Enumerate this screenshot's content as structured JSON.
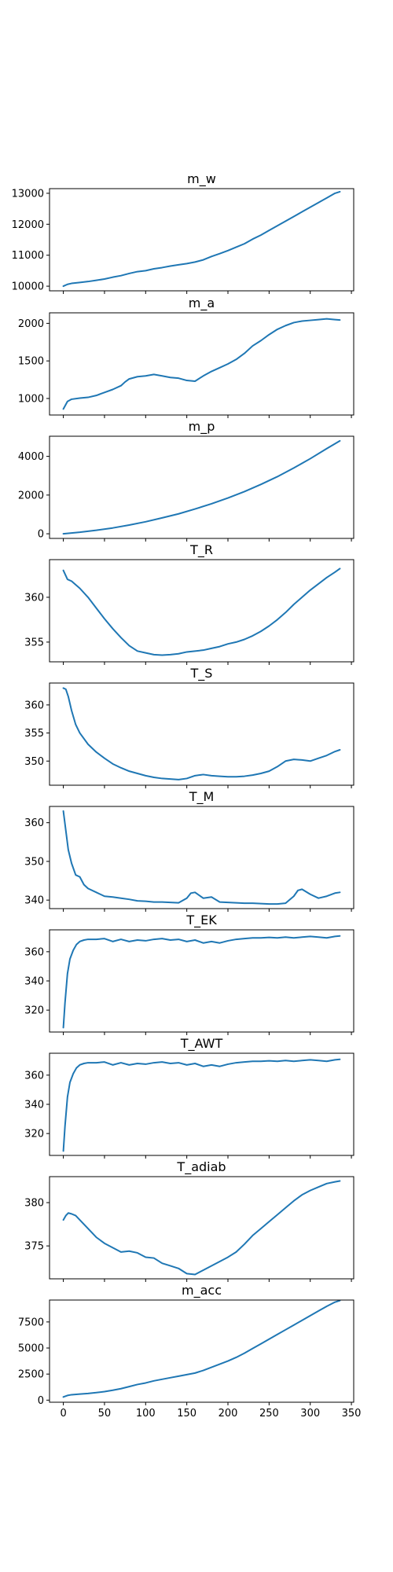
{
  "line_color": "#1f77b4",
  "x_ticks": [
    0,
    50,
    100,
    150,
    200,
    250,
    300,
    350
  ],
  "chart_data": [
    {
      "type": "line",
      "title": "m_w",
      "xlim": [
        -16.8,
        352.8
      ],
      "ylim": [
        9850,
        13150
      ],
      "yticks": [
        10000,
        11000,
        12000,
        13000
      ],
      "x": [
        0,
        5,
        10,
        20,
        30,
        40,
        50,
        60,
        70,
        80,
        90,
        100,
        110,
        120,
        130,
        140,
        150,
        160,
        170,
        180,
        190,
        200,
        210,
        220,
        230,
        240,
        250,
        260,
        270,
        280,
        290,
        300,
        310,
        320,
        330,
        336
      ],
      "y": [
        10000,
        10060,
        10090,
        10120,
        10150,
        10190,
        10230,
        10290,
        10340,
        10410,
        10470,
        10500,
        10560,
        10600,
        10650,
        10690,
        10730,
        10780,
        10850,
        10960,
        11050,
        11150,
        11260,
        11370,
        11520,
        11650,
        11800,
        11950,
        12100,
        12250,
        12400,
        12550,
        12700,
        12850,
        13000,
        13050
      ]
    },
    {
      "type": "line",
      "title": "m_a",
      "xlim": [
        -16.8,
        352.8
      ],
      "ylim": [
        780,
        2140
      ],
      "yticks": [
        1000,
        1500,
        2000
      ],
      "x": [
        0,
        5,
        10,
        20,
        30,
        40,
        50,
        60,
        70,
        75,
        80,
        90,
        100,
        110,
        120,
        130,
        140,
        150,
        160,
        170,
        180,
        190,
        200,
        210,
        220,
        230,
        240,
        250,
        260,
        270,
        280,
        290,
        300,
        310,
        320,
        330,
        336
      ],
      "y": [
        860,
        960,
        990,
        1005,
        1015,
        1040,
        1080,
        1120,
        1170,
        1220,
        1260,
        1290,
        1300,
        1320,
        1300,
        1280,
        1270,
        1240,
        1230,
        1300,
        1360,
        1410,
        1460,
        1520,
        1600,
        1700,
        1770,
        1850,
        1920,
        1970,
        2010,
        2030,
        2040,
        2050,
        2060,
        2050,
        2045
      ]
    },
    {
      "type": "line",
      "title": "m_p",
      "xlim": [
        -16.8,
        352.8
      ],
      "ylim": [
        -240,
        5040
      ],
      "yticks": [
        0,
        2000,
        4000
      ],
      "x": [
        0,
        20,
        40,
        60,
        80,
        100,
        120,
        140,
        160,
        180,
        200,
        220,
        240,
        260,
        280,
        300,
        320,
        336
      ],
      "y": [
        0,
        80,
        180,
        300,
        450,
        620,
        820,
        1030,
        1280,
        1550,
        1850,
        2180,
        2550,
        2950,
        3400,
        3880,
        4400,
        4800
      ]
    },
    {
      "type": "line",
      "title": "T_R",
      "xlim": [
        -16.8,
        352.8
      ],
      "ylim": [
        352.8,
        364.2
      ],
      "yticks": [
        355,
        360
      ],
      "x": [
        0,
        5,
        10,
        20,
        30,
        40,
        50,
        60,
        70,
        80,
        90,
        100,
        110,
        120,
        130,
        140,
        150,
        160,
        170,
        180,
        190,
        200,
        210,
        220,
        230,
        240,
        250,
        260,
        270,
        280,
        290,
        300,
        310,
        320,
        330,
        336
      ],
      "y": [
        363.0,
        362.0,
        361.8,
        361.0,
        360.0,
        358.8,
        357.6,
        356.5,
        355.5,
        354.6,
        354.0,
        353.8,
        353.6,
        353.55,
        353.6,
        353.7,
        353.9,
        354.0,
        354.1,
        354.3,
        354.5,
        354.8,
        355.0,
        355.3,
        355.7,
        356.2,
        356.8,
        357.5,
        358.3,
        359.2,
        360.0,
        360.8,
        361.5,
        362.2,
        362.8,
        363.2
      ]
    },
    {
      "type": "line",
      "title": "T_S",
      "xlim": [
        -16.8,
        352.8
      ],
      "ylim": [
        345.7,
        363.9
      ],
      "yticks": [
        350,
        355,
        360
      ],
      "x": [
        0,
        3,
        6,
        10,
        15,
        20,
        30,
        40,
        50,
        60,
        70,
        80,
        90,
        100,
        110,
        120,
        130,
        140,
        150,
        160,
        170,
        180,
        190,
        200,
        210,
        220,
        230,
        240,
        250,
        260,
        270,
        280,
        290,
        300,
        310,
        320,
        330,
        336
      ],
      "y": [
        363.0,
        362.8,
        361.5,
        359.0,
        356.5,
        355.0,
        353.0,
        351.6,
        350.5,
        349.5,
        348.8,
        348.2,
        347.8,
        347.4,
        347.1,
        346.9,
        346.8,
        346.7,
        346.9,
        347.4,
        347.6,
        347.4,
        347.3,
        347.2,
        347.2,
        347.3,
        347.5,
        347.8,
        348.2,
        349.0,
        350.0,
        350.3,
        350.2,
        350.0,
        350.5,
        351.0,
        351.7,
        352.0
      ]
    },
    {
      "type": "line",
      "title": "T_M",
      "xlim": [
        -16.8,
        352.8
      ],
      "ylim": [
        337.8,
        364.2
      ],
      "yticks": [
        340,
        350,
        360
      ],
      "x": [
        0,
        3,
        6,
        10,
        15,
        20,
        25,
        30,
        40,
        50,
        60,
        70,
        80,
        90,
        100,
        110,
        120,
        130,
        140,
        150,
        155,
        160,
        170,
        180,
        190,
        200,
        210,
        220,
        230,
        240,
        250,
        260,
        270,
        280,
        285,
        290,
        300,
        310,
        320,
        330,
        336
      ],
      "y": [
        363.0,
        358.0,
        353.0,
        349.5,
        346.5,
        346.0,
        344.0,
        343.0,
        342.0,
        341.0,
        340.8,
        340.5,
        340.2,
        339.8,
        339.7,
        339.5,
        339.5,
        339.4,
        339.3,
        340.5,
        341.8,
        342.0,
        340.5,
        340.8,
        339.5,
        339.4,
        339.3,
        339.2,
        339.2,
        339.1,
        339.0,
        339.0,
        339.2,
        341.0,
        342.5,
        342.8,
        341.5,
        340.5,
        341.0,
        341.8,
        342.0
      ]
    },
    {
      "type": "line",
      "title": "T_EK",
      "xlim": [
        -16.8,
        352.8
      ],
      "ylim": [
        305,
        375
      ],
      "yticks": [
        320,
        340,
        360
      ],
      "x": [
        0,
        2,
        5,
        8,
        12,
        16,
        20,
        25,
        30,
        40,
        50,
        60,
        70,
        80,
        90,
        100,
        110,
        120,
        130,
        140,
        150,
        160,
        170,
        180,
        190,
        200,
        210,
        220,
        230,
        240,
        250,
        260,
        270,
        280,
        290,
        300,
        310,
        320,
        330,
        336
      ],
      "y": [
        308,
        325,
        345,
        355,
        361,
        365,
        367,
        368,
        368.5,
        368.5,
        369,
        367,
        368.5,
        367,
        368,
        367.5,
        368.5,
        369,
        368,
        368.5,
        367,
        368,
        366,
        367,
        366,
        367.5,
        368.5,
        369,
        369.5,
        369.5,
        369.8,
        369.5,
        370,
        369.5,
        370,
        370.5,
        370,
        369.5,
        370.5,
        370.8
      ]
    },
    {
      "type": "line",
      "title": "T_AWT",
      "xlim": [
        -16.8,
        352.8
      ],
      "ylim": [
        305,
        375
      ],
      "yticks": [
        320,
        340,
        360
      ],
      "x": [
        0,
        2,
        5,
        8,
        12,
        16,
        20,
        25,
        30,
        40,
        50,
        60,
        70,
        80,
        90,
        100,
        110,
        120,
        130,
        140,
        150,
        160,
        170,
        180,
        190,
        200,
        210,
        220,
        230,
        240,
        250,
        260,
        270,
        280,
        290,
        300,
        310,
        320,
        330,
        336
      ],
      "y": [
        308,
        325,
        345,
        355,
        361,
        365,
        367,
        368,
        368.5,
        368.5,
        369,
        367,
        368.5,
        367,
        368,
        367.5,
        368.5,
        369,
        368,
        368.5,
        367,
        368,
        366,
        367,
        366,
        367.5,
        368.5,
        369,
        369.5,
        369.5,
        369.8,
        369.5,
        370,
        369.5,
        370,
        370.5,
        370,
        369.5,
        370.5,
        370.8
      ]
    },
    {
      "type": "line",
      "title": "T_adiab",
      "xlim": [
        -16.8,
        352.8
      ],
      "ylim": [
        371.2,
        383.0
      ],
      "yticks": [
        375,
        380
      ],
      "x": [
        0,
        3,
        6,
        10,
        15,
        20,
        30,
        40,
        50,
        60,
        70,
        80,
        90,
        100,
        110,
        120,
        130,
        140,
        150,
        160,
        170,
        180,
        190,
        200,
        210,
        220,
        230,
        240,
        250,
        260,
        270,
        280,
        290,
        300,
        310,
        320,
        330,
        336
      ],
      "y": [
        378.0,
        378.5,
        378.8,
        378.7,
        378.5,
        378.0,
        377.0,
        376.0,
        375.3,
        374.8,
        374.3,
        374.4,
        374.2,
        373.7,
        373.6,
        373.0,
        372.7,
        372.4,
        371.8,
        371.7,
        372.2,
        372.7,
        373.2,
        373.7,
        374.3,
        375.2,
        376.2,
        377.0,
        377.8,
        378.6,
        379.4,
        380.2,
        380.9,
        381.4,
        381.8,
        382.2,
        382.4,
        382.5
      ]
    },
    {
      "type": "line",
      "title": "m_acc",
      "xlim": [
        -16.8,
        352.8
      ],
      "ylim": [
        -200,
        9600
      ],
      "yticks": [
        0,
        2500,
        5000,
        7500
      ],
      "x": [
        0,
        5,
        10,
        20,
        30,
        40,
        50,
        60,
        70,
        80,
        90,
        100,
        110,
        120,
        130,
        140,
        150,
        160,
        170,
        180,
        190,
        200,
        210,
        220,
        230,
        240,
        250,
        260,
        270,
        280,
        290,
        300,
        310,
        320,
        330,
        336
      ],
      "y": [
        300,
        450,
        520,
        580,
        640,
        720,
        820,
        950,
        1100,
        1300,
        1500,
        1650,
        1850,
        2000,
        2150,
        2300,
        2450,
        2600,
        2850,
        3150,
        3450,
        3750,
        4100,
        4500,
        4950,
        5400,
        5850,
        6300,
        6750,
        7200,
        7650,
        8100,
        8550,
        9000,
        9400,
        9550
      ]
    }
  ]
}
